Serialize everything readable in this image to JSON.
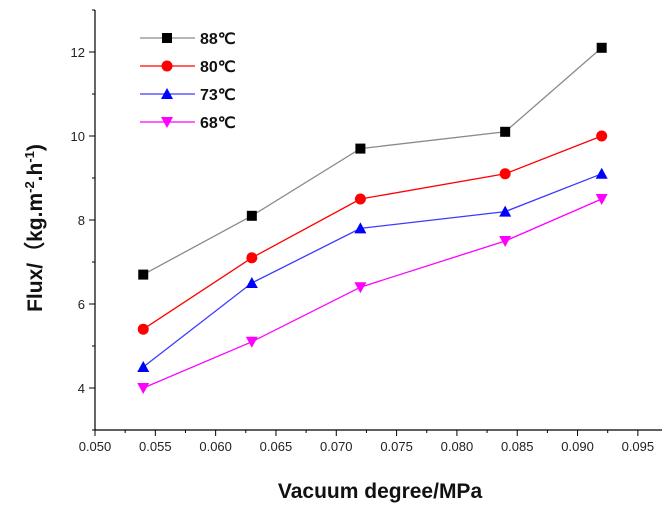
{
  "chart_data": {
    "type": "line",
    "title": "",
    "xlabel": "Vacuum degree/MPa",
    "ylabel_parts": [
      "Flux/（kg.m",
      "-2",
      ".h",
      "-1",
      ")"
    ],
    "xlim": [
      0.05,
      0.097
    ],
    "ylim": [
      3.0,
      13.0
    ],
    "x_ticks": [
      "0.050",
      "0.055",
      "0.060",
      "0.065",
      "0.070",
      "0.075",
      "0.080",
      "0.085",
      "0.090",
      "0.095"
    ],
    "x_tick_values": [
      0.05,
      0.055,
      0.06,
      0.065,
      0.07,
      0.075,
      0.08,
      0.085,
      0.09,
      0.095
    ],
    "y_ticks": [
      "4",
      "6",
      "8",
      "10",
      "12"
    ],
    "y_tick_values": [
      4,
      6,
      8,
      10,
      12
    ],
    "legend_position": "top-left",
    "x": [
      0.054,
      0.063,
      0.072,
      0.084,
      0.092
    ],
    "series": [
      {
        "name": "88℃",
        "values": [
          6.7,
          8.1,
          9.7,
          10.1,
          12.1
        ],
        "color": "#000000",
        "line_color": "#8a8a8a",
        "marker": "square"
      },
      {
        "name": "80℃",
        "values": [
          5.4,
          7.1,
          8.5,
          9.1,
          10.0
        ],
        "color": "#ff0000",
        "line_color": "#ff0000",
        "marker": "circle"
      },
      {
        "name": "73℃",
        "values": [
          4.5,
          6.5,
          7.8,
          8.2,
          9.1
        ],
        "color": "#0000ff",
        "line_color": "#3b3bff",
        "marker": "triangle-up"
      },
      {
        "name": "68℃",
        "values": [
          4.0,
          5.1,
          6.4,
          7.5,
          8.5
        ],
        "color": "#ff00ff",
        "line_color": "#ff00ff",
        "marker": "triangle-down"
      }
    ]
  }
}
